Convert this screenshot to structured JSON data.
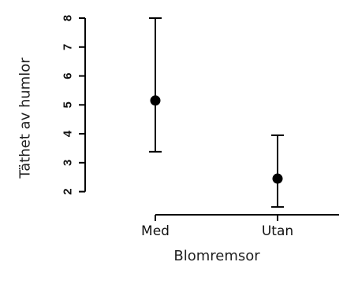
{
  "chart_data": {
    "type": "scatter",
    "categories": [
      "Med",
      "Utan"
    ],
    "means": [
      5.15,
      2.45
    ],
    "lower": [
      3.38,
      1.47
    ],
    "upper": [
      8.0,
      3.95
    ],
    "xlabel": "Blomremsor",
    "ylabel": "Täthet av humlor",
    "yticks": [
      "2",
      "3",
      "4",
      "5",
      "6",
      "7",
      "8"
    ],
    "ylim": [
      1.2,
      8.3
    ],
    "grid": false,
    "legend": "none",
    "color": "#000000"
  }
}
